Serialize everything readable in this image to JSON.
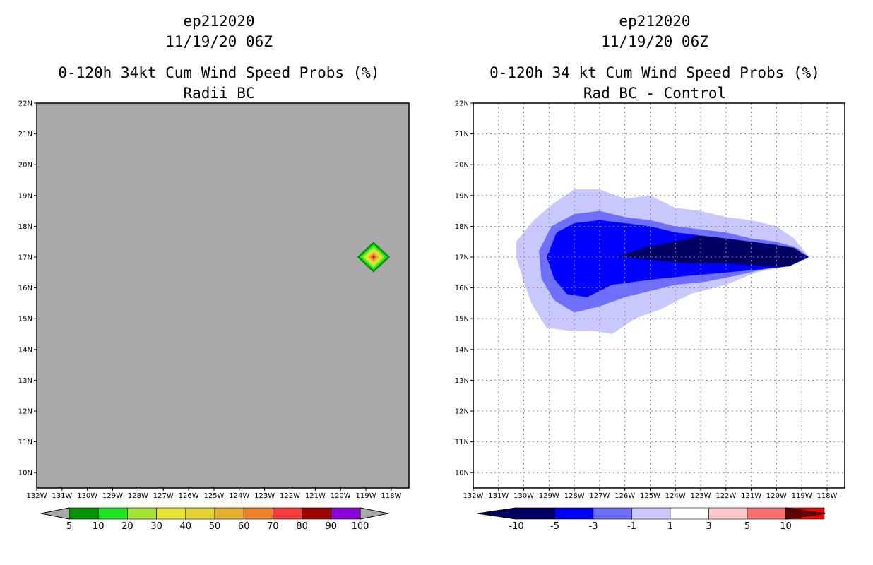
{
  "left": {
    "case": "ep212020",
    "datetime": "11/19/20 06Z",
    "title": "0-120h 34kt Cum Wind Speed Probs (%)",
    "subtitle": "Radii BC"
  },
  "right": {
    "case": "ep212020",
    "datetime": "11/19/20 06Z",
    "title": "0-120h 34 kt Cum Wind Speed Probs (%)",
    "subtitle": "Rad BC - Control"
  },
  "colors": {
    "background_gray": "#a9a9a9",
    "left_scale": [
      "#009600",
      "#1ee61e",
      "#a0e632",
      "#e6e632",
      "#e6d232",
      "#e6af2d",
      "#f08228",
      "#fa3c3c",
      "#a00000",
      "#8c00dc"
    ],
    "right_scale": [
      "#000064",
      "#0000ff",
      "#6e6eff",
      "#c8c8ff",
      "#ffffff",
      "#ffc8c8",
      "#ff6e6e",
      "#ff0000",
      "#640000"
    ]
  },
  "chart_data": [
    {
      "type": "heatmap",
      "name": "radii-bc",
      "title": "0-120h 34kt Cum Wind Speed Probs (%)",
      "subtitle": "Radii BC",
      "x_ticks": [
        "132W",
        "131W",
        "130W",
        "129W",
        "128W",
        "127W",
        "126W",
        "125W",
        "124W",
        "123W",
        "122W",
        "121W",
        "120W",
        "119W",
        "118W"
      ],
      "y_ticks": [
        "10N",
        "11N",
        "12N",
        "13N",
        "14N",
        "15N",
        "16N",
        "17N",
        "18N",
        "19N",
        "20N",
        "21N",
        "22N"
      ],
      "xlim": [
        -132,
        -117.3
      ],
      "ylim": [
        9.5,
        22
      ],
      "grid": false,
      "colorbar_levels": [
        "5",
        "10",
        "20",
        "30",
        "40",
        "50",
        "60",
        "70",
        "80",
        "90",
        "100"
      ],
      "contours": [
        {
          "level": 5,
          "lon": -118.7,
          "lat": 17.0,
          "rx": 0.65,
          "ry": 0.5
        },
        {
          "level": 10,
          "lon": -118.7,
          "lat": 17.0,
          "rx": 0.55,
          "ry": 0.42
        },
        {
          "level": 20,
          "lon": -118.7,
          "lat": 17.0,
          "rx": 0.45,
          "ry": 0.35
        },
        {
          "level": 30,
          "lon": -118.7,
          "lat": 17.0,
          "rx": 0.35,
          "ry": 0.27
        },
        {
          "level": 40,
          "lon": -118.7,
          "lat": 17.0,
          "rx": 0.27,
          "ry": 0.21
        },
        {
          "level": 50,
          "lon": -118.7,
          "lat": 17.0,
          "rx": 0.2,
          "ry": 0.16
        },
        {
          "level": 60,
          "lon": -118.7,
          "lat": 17.0,
          "rx": 0.14,
          "ry": 0.11
        },
        {
          "level": 70,
          "lon": -118.7,
          "lat": 17.0,
          "rx": 0.09,
          "ry": 0.07
        },
        {
          "level": 90,
          "lon": -118.7,
          "lat": 17.0,
          "rx": 0.04,
          "ry": 0.035
        }
      ]
    },
    {
      "type": "heatmap",
      "name": "rad-bc-minus-control",
      "title": "0-120h 34 kt Cum Wind Speed Probs (%)",
      "subtitle": "Rad BC - Control",
      "x_ticks": [
        "132W",
        "131W",
        "130W",
        "129W",
        "128W",
        "127W",
        "126W",
        "125W",
        "124W",
        "123W",
        "122W",
        "121W",
        "120W",
        "119W",
        "118W"
      ],
      "y_ticks": [
        "10N",
        "11N",
        "12N",
        "13N",
        "14N",
        "15N",
        "16N",
        "17N",
        "18N",
        "19N",
        "20N",
        "21N",
        "22N"
      ],
      "xlim": [
        -132,
        -117.3
      ],
      "ylim": [
        9.5,
        22
      ],
      "grid": true,
      "colorbar_levels": [
        "-10",
        "-5",
        "-3",
        "-1",
        "1",
        "3",
        "5",
        "10"
      ],
      "contours": [
        {
          "level": "-1 to -3",
          "points": [
            [
              -130.3,
              17.5
            ],
            [
              -129.6,
              18.2
            ],
            [
              -128.9,
              18.7
            ],
            [
              -128,
              19.2
            ],
            [
              -127,
              19.2
            ],
            [
              -126,
              18.9
            ],
            [
              -125,
              19.0
            ],
            [
              -124,
              18.6
            ],
            [
              -123,
              18.5
            ],
            [
              -122,
              18.3
            ],
            [
              -121,
              18.2
            ],
            [
              -120,
              18.0
            ],
            [
              -119.3,
              17.6
            ],
            [
              -118.7,
              17.0
            ],
            [
              -119.6,
              16.7
            ],
            [
              -120.8,
              16.5
            ],
            [
              -122,
              16.1
            ],
            [
              -123.4,
              15.8
            ],
            [
              -124.6,
              15.3
            ],
            [
              -125.6,
              15.0
            ],
            [
              -126.5,
              14.5
            ],
            [
              -127.2,
              14.6
            ],
            [
              -128.1,
              14.6
            ],
            [
              -129.1,
              14.7
            ],
            [
              -129.7,
              15.5
            ],
            [
              -130.0,
              16.2
            ],
            [
              -130.3,
              17.0
            ]
          ]
        },
        {
          "level": "-3 to -5",
          "points": [
            [
              -129.4,
              17.2
            ],
            [
              -128.9,
              18.0
            ],
            [
              -128,
              18.4
            ],
            [
              -127,
              18.5
            ],
            [
              -126,
              18.3
            ],
            [
              -125,
              18.2
            ],
            [
              -124,
              18.0
            ],
            [
              -123,
              17.9
            ],
            [
              -122,
              17.8
            ],
            [
              -121,
              17.6
            ],
            [
              -120,
              17.5
            ],
            [
              -119.2,
              17.3
            ],
            [
              -118.7,
              17.0
            ],
            [
              -119.6,
              16.8
            ],
            [
              -120.5,
              16.6
            ],
            [
              -121.6,
              16.4
            ],
            [
              -122.8,
              16.2
            ],
            [
              -124,
              16.1
            ],
            [
              -125,
              15.9
            ],
            [
              -126,
              15.7
            ],
            [
              -127,
              15.4
            ],
            [
              -128,
              15.2
            ],
            [
              -128.8,
              15.6
            ],
            [
              -129.3,
              16.3
            ]
          ]
        },
        {
          "level": "-5 to -10",
          "points": [
            [
              -129.1,
              17.0
            ],
            [
              -128.7,
              17.8
            ],
            [
              -128,
              18.1
            ],
            [
              -127,
              18.2
            ],
            [
              -126,
              18.1
            ],
            [
              -125,
              18.0
            ],
            [
              -124,
              17.8
            ],
            [
              -123,
              17.7
            ],
            [
              -122,
              17.6
            ],
            [
              -121,
              17.5
            ],
            [
              -120,
              17.4
            ],
            [
              -119.2,
              17.2
            ],
            [
              -118.7,
              17.0
            ],
            [
              -119.5,
              16.7
            ],
            [
              -120.6,
              16.6
            ],
            [
              -122,
              16.5
            ],
            [
              -123.4,
              16.4
            ],
            [
              -124.6,
              16.3
            ],
            [
              -125.6,
              16.2
            ],
            [
              -126.5,
              16.1
            ],
            [
              -127.5,
              15.7
            ],
            [
              -128.3,
              15.8
            ],
            [
              -128.8,
              16.3
            ]
          ]
        },
        {
          "level": "< -10",
          "points": [
            [
              -126.3,
              17.0
            ],
            [
              -125.3,
              17.3
            ],
            [
              -124,
              17.5
            ],
            [
              -123,
              17.7
            ],
            [
              -122,
              17.6
            ],
            [
              -121,
              17.5
            ],
            [
              -119.3,
              17.3
            ],
            [
              -118.8,
              17.0
            ],
            [
              -119.5,
              16.7
            ],
            [
              -120.5,
              16.7
            ],
            [
              -122,
              16.8
            ],
            [
              -123.5,
              16.8
            ],
            [
              -125,
              16.9
            ]
          ]
        }
      ]
    }
  ]
}
